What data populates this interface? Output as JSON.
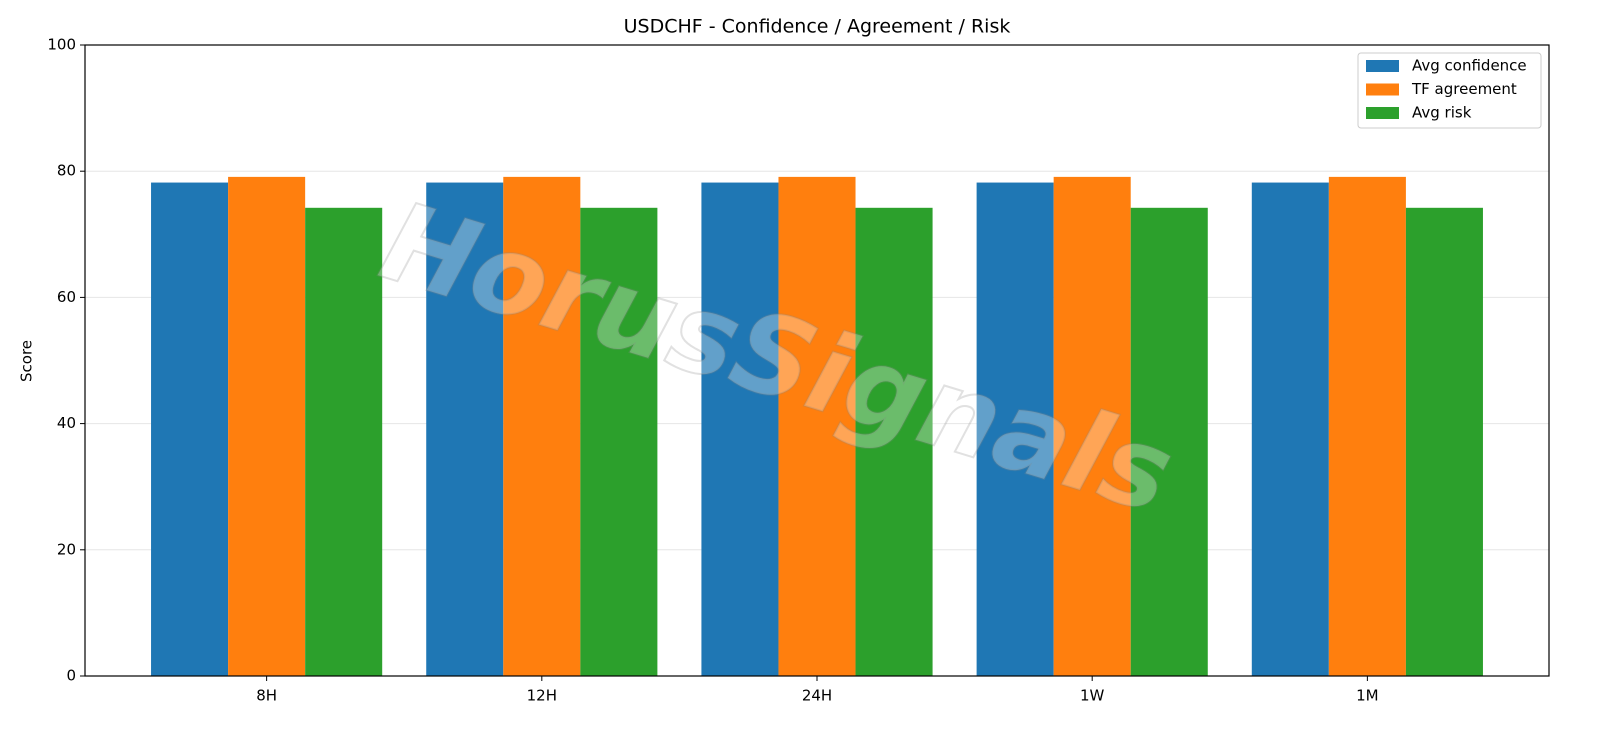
{
  "chart_data": {
    "type": "bar",
    "title": "USDCHF - Confidence / Agreement / Risk",
    "y_label": "Score",
    "watermark": "HorusSignals",
    "categories": [
      "8H",
      "12H",
      "24H",
      "1W",
      "1M"
    ],
    "series": [
      {
        "name": "Avg confidence",
        "color": "#1f77b4",
        "values": [
          78.2,
          78.2,
          78.2,
          78.2,
          78.2
        ]
      },
      {
        "name": "TF agreement",
        "color": "#ff7f0e",
        "values": [
          79.1,
          79.1,
          79.1,
          79.1,
          79.1
        ]
      },
      {
        "name": "Avg risk",
        "color": "#2ca02c",
        "values": [
          74.2,
          74.2,
          74.2,
          74.2,
          74.2
        ]
      }
    ],
    "ylim": [
      0,
      100
    ],
    "yticks": [
      0,
      20,
      40,
      60,
      80,
      100
    ],
    "grid": true,
    "legend": "upper right"
  }
}
